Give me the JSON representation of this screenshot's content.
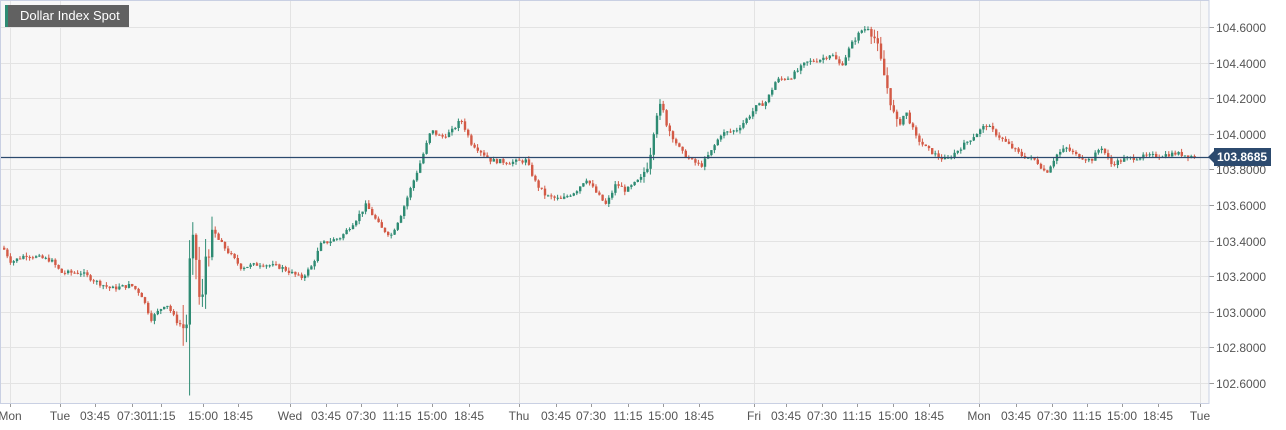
{
  "title": "Dollar Index Spot",
  "current_price_label": "103.8685",
  "colors": {
    "up": "#2e8b73",
    "down": "#d35a46",
    "price_line": "#2c4a6e",
    "grid": "#e3e3e3",
    "plot_bg": "#f7f7f7",
    "border": "#c9d0e3"
  },
  "y_axis": {
    "labels": [
      "104.6000",
      "104.4000",
      "104.2000",
      "104.0000",
      "103.8000",
      "103.6000",
      "103.4000",
      "103.2000",
      "103.0000",
      "102.8000",
      "102.6000"
    ],
    "values": [
      104.6,
      104.4,
      104.2,
      104.0,
      103.8,
      103.6,
      103.4,
      103.2,
      103.0,
      102.8,
      102.6
    ]
  },
  "x_axis": {
    "labels": [
      "Mon",
      "Tue",
      "03:45",
      "07:30",
      "11:15",
      "15:00",
      "18:45",
      "Wed",
      "03:45",
      "07:30",
      "11:15",
      "15:00",
      "18:45",
      "Thu",
      "03:45",
      "07:30",
      "11:15",
      "15:00",
      "18:45",
      "Fri",
      "03:45",
      "07:30",
      "11:15",
      "15:00",
      "18:45",
      "Mon",
      "03:45",
      "07:30",
      "11:15",
      "15:00",
      "18:45",
      "Tue"
    ],
    "positions": [
      10,
      60,
      95,
      132,
      161,
      203,
      238,
      290,
      326,
      361,
      397,
      432,
      469,
      519,
      556,
      591,
      628,
      663,
      699,
      754,
      786,
      822,
      857,
      893,
      929,
      979,
      1016,
      1052,
      1087,
      1122,
      1158,
      1200
    ]
  },
  "chart_data": {
    "type": "candlestick",
    "title": "Dollar Index Spot",
    "xlabel": "",
    "ylabel": "",
    "ylim": [
      102.5,
      104.72
    ],
    "last_price": 103.8685,
    "grid": true,
    "x": [
      "Mon",
      "Tue",
      "Tue 03:45",
      "Tue 07:30",
      "Tue 11:15",
      "Tue 15:00",
      "Tue 18:45",
      "Wed",
      "Wed 03:45",
      "Wed 07:30",
      "Wed 11:15",
      "Wed 15:00",
      "Wed 18:45",
      "Thu",
      "Thu 03:45",
      "Thu 07:30",
      "Thu 11:15",
      "Thu 15:00",
      "Thu 18:45",
      "Fri",
      "Fri 03:45",
      "Fri 07:30",
      "Fri 11:15",
      "Fri 15:00",
      "Fri 18:45",
      "Mon",
      "Mon 03:45",
      "Mon 07:30",
      "Mon 11:15",
      "Mon 15:00",
      "Mon 18:45",
      "Tue"
    ],
    "close_path": [
      [
        2,
        103.36
      ],
      [
        10,
        103.28
      ],
      [
        25,
        103.32
      ],
      [
        50,
        103.29
      ],
      [
        60,
        103.22
      ],
      [
        80,
        103.22
      ],
      [
        95,
        103.17
      ],
      [
        110,
        103.13
      ],
      [
        130,
        103.15
      ],
      [
        140,
        103.1
      ],
      [
        150,
        102.96
      ],
      [
        165,
        103.05
      ],
      [
        175,
        102.95
      ],
      [
        185,
        102.9
      ],
      [
        190,
        103.4
      ],
      [
        195,
        103.3
      ],
      [
        200,
        102.95
      ],
      [
        205,
        103.35
      ],
      [
        215,
        103.42
      ],
      [
        225,
        103.35
      ],
      [
        240,
        103.25
      ],
      [
        260,
        103.27
      ],
      [
        280,
        103.25
      ],
      [
        300,
        103.19
      ],
      [
        310,
        103.25
      ],
      [
        320,
        103.38
      ],
      [
        340,
        103.42
      ],
      [
        355,
        103.52
      ],
      [
        365,
        103.6
      ],
      [
        380,
        103.47
      ],
      [
        390,
        103.43
      ],
      [
        400,
        103.55
      ],
      [
        410,
        103.7
      ],
      [
        420,
        103.85
      ],
      [
        430,
        104.02
      ],
      [
        440,
        103.98
      ],
      [
        450,
        104.01
      ],
      [
        460,
        104.08
      ],
      [
        470,
        103.95
      ],
      [
        480,
        103.9
      ],
      [
        490,
        103.85
      ],
      [
        510,
        103.84
      ],
      [
        525,
        103.85
      ],
      [
        535,
        103.72
      ],
      [
        545,
        103.65
      ],
      [
        560,
        103.63
      ],
      [
        575,
        103.68
      ],
      [
        585,
        103.75
      ],
      [
        595,
        103.67
      ],
      [
        605,
        103.6
      ],
      [
        615,
        103.72
      ],
      [
        625,
        103.68
      ],
      [
        640,
        103.75
      ],
      [
        648,
        103.85
      ],
      [
        655,
        104.12
      ],
      [
        660,
        104.15
      ],
      [
        670,
        104.0
      ],
      [
        680,
        103.9
      ],
      [
        690,
        103.85
      ],
      [
        700,
        103.82
      ],
      [
        710,
        103.9
      ],
      [
        720,
        104.0
      ],
      [
        735,
        104.02
      ],
      [
        745,
        104.08
      ],
      [
        755,
        104.15
      ],
      [
        765,
        104.18
      ],
      [
        775,
        104.3
      ],
      [
        790,
        104.32
      ],
      [
        805,
        104.4
      ],
      [
        820,
        104.42
      ],
      [
        830,
        104.45
      ],
      [
        840,
        104.38
      ],
      [
        850,
        104.5
      ],
      [
        860,
        104.58
      ],
      [
        868,
        104.6
      ],
      [
        875,
        104.52
      ],
      [
        882,
        104.35
      ],
      [
        888,
        104.22
      ],
      [
        895,
        104.05
      ],
      [
        905,
        104.12
      ],
      [
        915,
        103.98
      ],
      [
        925,
        103.92
      ],
      [
        935,
        103.88
      ],
      [
        945,
        103.85
      ],
      [
        955,
        103.9
      ],
      [
        965,
        103.95
      ],
      [
        975,
        104.0
      ],
      [
        985,
        104.05
      ],
      [
        995,
        104.0
      ],
      [
        1005,
        103.95
      ],
      [
        1020,
        103.88
      ],
      [
        1035,
        103.85
      ],
      [
        1045,
        103.78
      ],
      [
        1055,
        103.88
      ],
      [
        1065,
        103.92
      ],
      [
        1075,
        103.88
      ],
      [
        1090,
        103.85
      ],
      [
        1100,
        103.93
      ],
      [
        1110,
        103.83
      ],
      [
        1125,
        103.86
      ],
      [
        1140,
        103.87
      ],
      [
        1160,
        103.88
      ],
      [
        1175,
        103.89
      ],
      [
        1195,
        103.87
      ]
    ]
  }
}
